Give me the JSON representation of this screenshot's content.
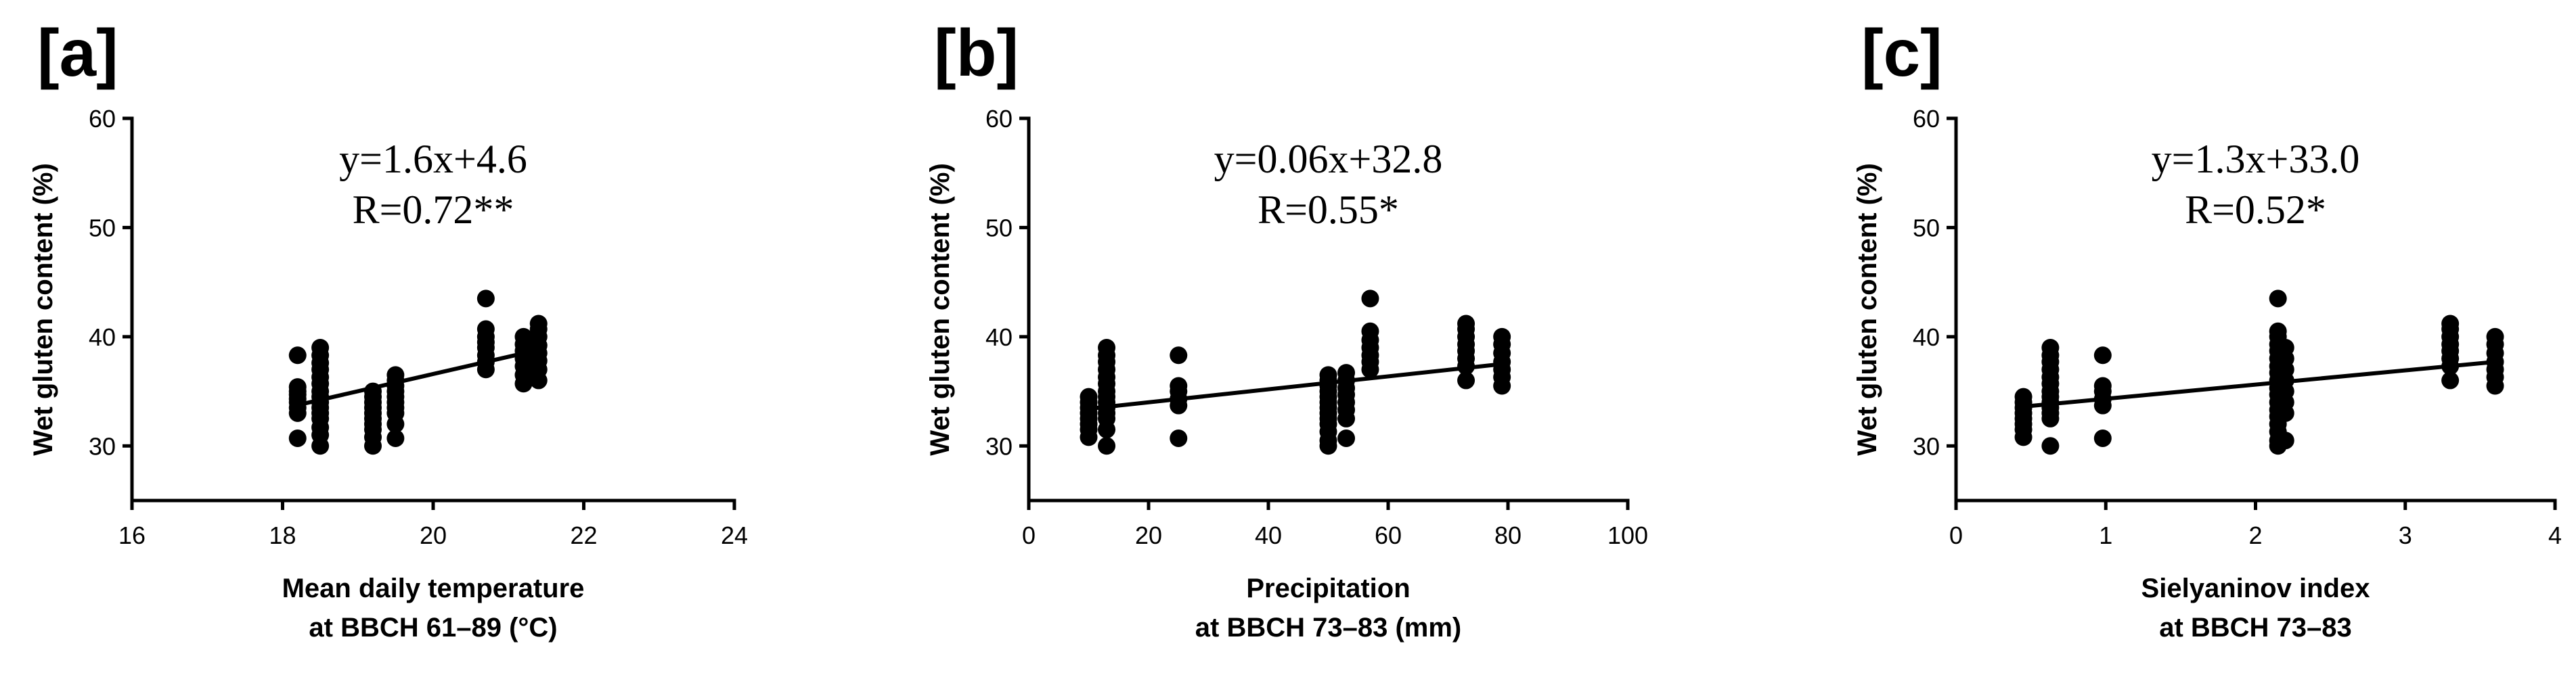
{
  "chart_data": [
    {
      "panel": "[a]",
      "type": "scatter",
      "equation": "y=1.6x+4.6",
      "correlation": "R=0.72**",
      "xlabel_lines": [
        "Mean daily temperature",
        "at BBCH 61–89 (°C)"
      ],
      "ylabel": "Wet gluten content (%)",
      "xlim": [
        16,
        24
      ],
      "ylim": [
        25,
        60
      ],
      "xticks": [
        16,
        18,
        20,
        22,
        24
      ],
      "yticks": [
        30,
        40,
        50,
        60
      ],
      "fit": {
        "x": [
          18.3,
          21.4
        ],
        "y": [
          33.9,
          38.8
        ]
      },
      "groups": [
        {
          "x": 18.2,
          "y": [
            30.7,
            33.0,
            33.5,
            34.0,
            34.3,
            34.7,
            35.0,
            35.4,
            38.3
          ]
        },
        {
          "x": 18.5,
          "y": [
            30.0,
            31.0,
            31.7,
            32.5,
            33.0,
            33.5,
            34.0,
            34.5,
            35.0,
            35.7,
            36.3,
            37.0,
            37.6,
            38.3,
            39.0
          ]
        },
        {
          "x": 19.2,
          "y": [
            30.0,
            30.8,
            31.5,
            32.0,
            32.5,
            33.0,
            33.5,
            34.0,
            34.5,
            35.0
          ]
        },
        {
          "x": 19.5,
          "y": [
            30.7,
            32.0,
            33.0,
            33.5,
            34.0,
            34.5,
            35.0,
            35.5,
            36.0,
            36.5
          ]
        },
        {
          "x": 20.7,
          "y": [
            37.0,
            37.7,
            38.3,
            39.0,
            39.5,
            40.0,
            40.7,
            43.5
          ]
        },
        {
          "x": 21.2,
          "y": [
            35.7,
            36.5,
            37.3,
            38.0,
            38.7,
            39.3,
            40.0
          ]
        },
        {
          "x": 21.4,
          "y": [
            36.0,
            37.0,
            37.8,
            38.5,
            39.2,
            40.0,
            40.7,
            41.2
          ]
        }
      ]
    },
    {
      "panel": "[b]",
      "type": "scatter",
      "equation": "y=0.06x+32.8",
      "correlation": "R=0.55*",
      "xlabel_lines": [
        "Precipitation",
        "at BBCH 73–83 (mm)"
      ],
      "ylabel": "Wet gluten content (%)",
      "xlim": [
        0,
        100
      ],
      "ylim": [
        25,
        60
      ],
      "xticks": [
        0,
        20,
        40,
        60,
        80,
        100
      ],
      "yticks": [
        30,
        40,
        50,
        60
      ],
      "fit": {
        "x": [
          10,
          79
        ],
        "y": [
          33.4,
          37.5
        ]
      },
      "groups": [
        {
          "x": 10,
          "y": [
            30.8,
            31.5,
            32.0,
            32.5,
            33.0,
            33.5,
            34.0,
            34.5
          ]
        },
        {
          "x": 13,
          "y": [
            30.0,
            31.5,
            32.5,
            33.0,
            33.5,
            34.0,
            34.5,
            35.0,
            35.7,
            36.3,
            37.0,
            37.7,
            38.3,
            39.0
          ]
        },
        {
          "x": 25,
          "y": [
            30.7,
            33.7,
            34.3,
            35.0,
            35.5,
            38.3
          ]
        },
        {
          "x": 50,
          "y": [
            30.0,
            30.5,
            31.3,
            32.0,
            32.5,
            33.0,
            33.5,
            34.0,
            34.5,
            35.0,
            35.5,
            36.0,
            36.5
          ]
        },
        {
          "x": 53,
          "y": [
            30.7,
            32.5,
            33.3,
            34.0,
            34.7,
            35.3,
            36.0,
            36.7
          ]
        },
        {
          "x": 57,
          "y": [
            37.0,
            37.7,
            38.3,
            39.0,
            39.7,
            40.5,
            43.5
          ]
        },
        {
          "x": 73,
          "y": [
            36.0,
            37.3,
            38.0,
            38.7,
            39.3,
            40.0,
            40.7,
            41.2
          ]
        },
        {
          "x": 79,
          "y": [
            35.5,
            36.3,
            37.0,
            37.7,
            38.5,
            39.3,
            40.0
          ]
        }
      ]
    },
    {
      "panel": "[c]",
      "type": "scatter",
      "equation": "y=1.3x+33.0",
      "correlation": "R=0.52*",
      "xlabel_lines": [
        "Sielyaninov index",
        "at BBCH 73–83"
      ],
      "ylabel": "Wet gluten content (%)",
      "xlim": [
        0,
        4
      ],
      "ylim": [
        25,
        60
      ],
      "xticks": [
        0,
        1,
        2,
        3,
        4
      ],
      "yticks": [
        30,
        40,
        50,
        60
      ],
      "fit": {
        "x": [
          0.45,
          3.6
        ],
        "y": [
          33.6,
          37.7
        ]
      },
      "groups": [
        {
          "x": 0.45,
          "y": [
            30.8,
            31.5,
            32.0,
            32.5,
            33.0,
            33.5,
            34.0,
            34.5
          ]
        },
        {
          "x": 0.63,
          "y": [
            30.0,
            32.5,
            33.0,
            33.5,
            34.0,
            34.5,
            35.0,
            35.7,
            36.3,
            37.0,
            37.7,
            38.3,
            39.0
          ]
        },
        {
          "x": 0.98,
          "y": [
            30.7,
            33.7,
            34.3,
            35.0,
            35.5,
            38.3
          ]
        },
        {
          "x": 2.15,
          "y": [
            30.0,
            30.5,
            31.3,
            32.0,
            32.7,
            33.3,
            34.0,
            34.7,
            35.3,
            36.0,
            36.7,
            37.3,
            38.0,
            38.7,
            39.3,
            40.0,
            40.5,
            43.5
          ]
        },
        {
          "x": 2.2,
          "y": [
            30.5,
            33.0,
            34.0,
            35.0,
            36.0,
            37.0,
            38.0,
            39.0
          ]
        },
        {
          "x": 3.3,
          "y": [
            36.0,
            37.3,
            38.0,
            38.7,
            39.3,
            40.0,
            40.7,
            41.2
          ]
        },
        {
          "x": 3.6,
          "y": [
            35.5,
            36.3,
            37.0,
            37.7,
            38.5,
            39.3,
            40.0
          ]
        }
      ]
    }
  ]
}
